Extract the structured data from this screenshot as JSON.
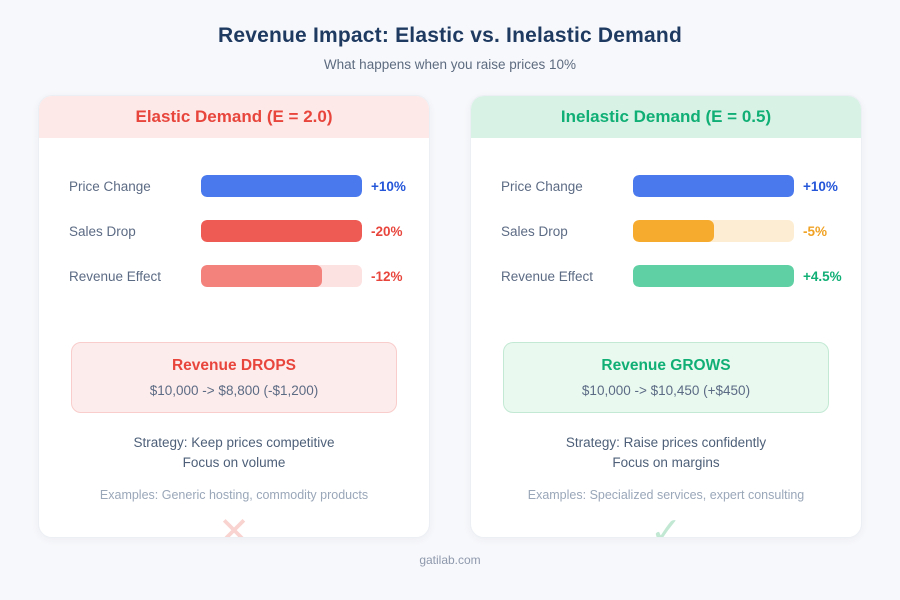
{
  "page": {
    "title": "Revenue Impact: Elastic vs. Inelastic Demand",
    "subtitle": "What happens when you raise prices 10%",
    "footer": "gatilab.com"
  },
  "chart_data": [
    {
      "type": "bar",
      "orientation": "horizontal",
      "title": "Elastic Demand (E = 2.0)",
      "categories": [
        "Price Change",
        "Sales Drop",
        "Revenue Effect"
      ],
      "values": [
        10,
        -20,
        -12
      ],
      "value_labels": [
        "+10%",
        "-20%",
        "-12%"
      ],
      "bar_colors": [
        "#4a79ed",
        "#ee5b54",
        "#f3827d"
      ],
      "bar_fill_fraction": [
        1.0,
        1.0,
        0.75
      ],
      "result": "Revenue DROPS: $10,000 -> $8,800 (-$1,200)",
      "annotations": [
        "Strategy: Keep prices competitive",
        "Focus on volume",
        "Examples: Generic hosting, commodity products"
      ],
      "legend": false,
      "grid": false
    },
    {
      "type": "bar",
      "orientation": "horizontal",
      "title": "Inelastic Demand (E = 0.5)",
      "categories": [
        "Price Change",
        "Sales Drop",
        "Revenue Effect"
      ],
      "values": [
        10,
        -5,
        4.5
      ],
      "value_labels": [
        "+10%",
        "-5%",
        "+4.5%"
      ],
      "bar_colors": [
        "#4a79ed",
        "#f6ab2f",
        "#5fcfa4"
      ],
      "bar_fill_fraction": [
        1.0,
        0.5,
        1.0
      ],
      "result": "Revenue GROWS: $10,000 -> $10,450 (+$450)",
      "annotations": [
        "Strategy: Raise prices confidently",
        "Focus on margins",
        "Examples: Specialized services, expert consulting"
      ],
      "legend": false,
      "grid": false
    }
  ],
  "cards": [
    {
      "header": "Elastic Demand (E = 2.0)",
      "accent": "#e8463d",
      "header_bg": "#fce9e8",
      "rows": [
        {
          "label": "Price Change",
          "value": "+10%",
          "fill": "#4a79ed",
          "track": "transparent",
          "width": "100%",
          "value_color": "#2456d9"
        },
        {
          "label": "Sales Drop",
          "value": "-20%",
          "fill": "#ee5b54",
          "track": "transparent",
          "width": "100%",
          "value_color": "#e8463d"
        },
        {
          "label": "Revenue Effect",
          "value": "-12%",
          "fill": "#f3827d",
          "track": "#fce2e1",
          "width": "75%",
          "value_color": "#e8463d"
        }
      ],
      "result": {
        "title": "Revenue DROPS",
        "detail": "$10,000 -> $8,800 (-$1,200)",
        "bg": "#fdecec",
        "border": "#f8cdcb"
      },
      "strategy_line1": "Strategy: Keep prices competitive",
      "strategy_line2": "Focus on volume",
      "examples": "Examples: Generic hosting, commodity products",
      "mark": "✕",
      "mark_color": "#f8d3d0"
    },
    {
      "header": "Inelastic Demand (E = 0.5)",
      "accent": "#10af76",
      "header_bg": "#d9f2e6",
      "rows": [
        {
          "label": "Price Change",
          "value": "+10%",
          "fill": "#4a79ed",
          "track": "transparent",
          "width": "100%",
          "value_color": "#2456d9"
        },
        {
          "label": "Sales Drop",
          "value": "-5%",
          "fill": "#f6ab2f",
          "track": "#fdeed3",
          "width": "50%",
          "value_color": "#f0a224"
        },
        {
          "label": "Revenue Effect",
          "value": "+4.5%",
          "fill": "#5fcfa4",
          "track": "transparent",
          "width": "100%",
          "value_color": "#10af76"
        }
      ],
      "result": {
        "title": "Revenue GROWS",
        "detail": "$10,000 -> $10,450 (+$450)",
        "bg": "#e9f9f0",
        "border": "#c3e9d4"
      },
      "strategy_line1": "Strategy: Raise prices confidently",
      "strategy_line2": "Focus on margins",
      "examples": "Examples: Specialized services, expert consulting",
      "mark": "✓",
      "mark_color": "#c2e8d4"
    }
  ]
}
